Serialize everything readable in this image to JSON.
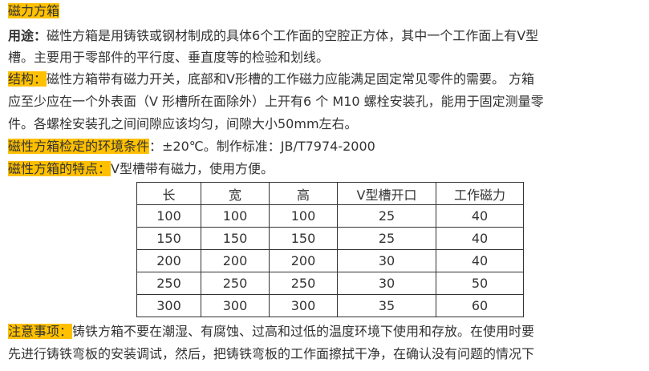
{
  "title": "磁力方箱",
  "usage": {
    "label": "用途：",
    "lines": [
      "磁性方箱是用铸铁或钢材制成的具体6个工作面的空腔正方体，其中一个工作面上有V型",
      "槽。主要用于零部件的平行度、垂直度等的检验和划线。"
    ]
  },
  "structure": {
    "label": "结构：",
    "lines": [
      "磁性方箱带有磁力开关，底部和V形槽的工作磁力应能满足固定常见零件的需要。 方箱",
      "应至少应在一个外表面（V 形槽所在面除外）上开有6 个 M10 螺栓安装孔，能用于固定测量零",
      "件。各螺栓安装孔之间间隙应该均匀，间隙大小50mm左右。"
    ]
  },
  "environment": {
    "label": "磁性方箱检定的环境条件",
    "text": "：±20℃。制作标准：JB/T7974-2000"
  },
  "features": {
    "label": "磁性方箱的特点：",
    "text": "V型槽带有磁力，使用方便。"
  },
  "table": {
    "headers": [
      "长",
      "宽",
      "高",
      "V型槽开口",
      "工作磁力"
    ],
    "rows": [
      [
        "100",
        "100",
        "100",
        "25",
        "40"
      ],
      [
        "150",
        "150",
        "150",
        "25",
        "40"
      ],
      [
        "200",
        "200",
        "200",
        "30",
        "40"
      ],
      [
        "250",
        "250",
        "250",
        "30",
        "50"
      ],
      [
        "300",
        "300",
        "300",
        "35",
        "60"
      ]
    ]
  },
  "notes": {
    "label": "注意事项：",
    "lines": [
      "铸铁方箱不要在潮湿、有腐蚀、过高和过低的温度环境下使用和存放。在使用时要",
      "先进行铸铁弯板的安装调试，然后，把铸铁弯板的工作面擦拭干净，在确认没有问题的情况下"
    ]
  },
  "colors": {
    "highlight": "#FFC000",
    "text": "#333333"
  }
}
